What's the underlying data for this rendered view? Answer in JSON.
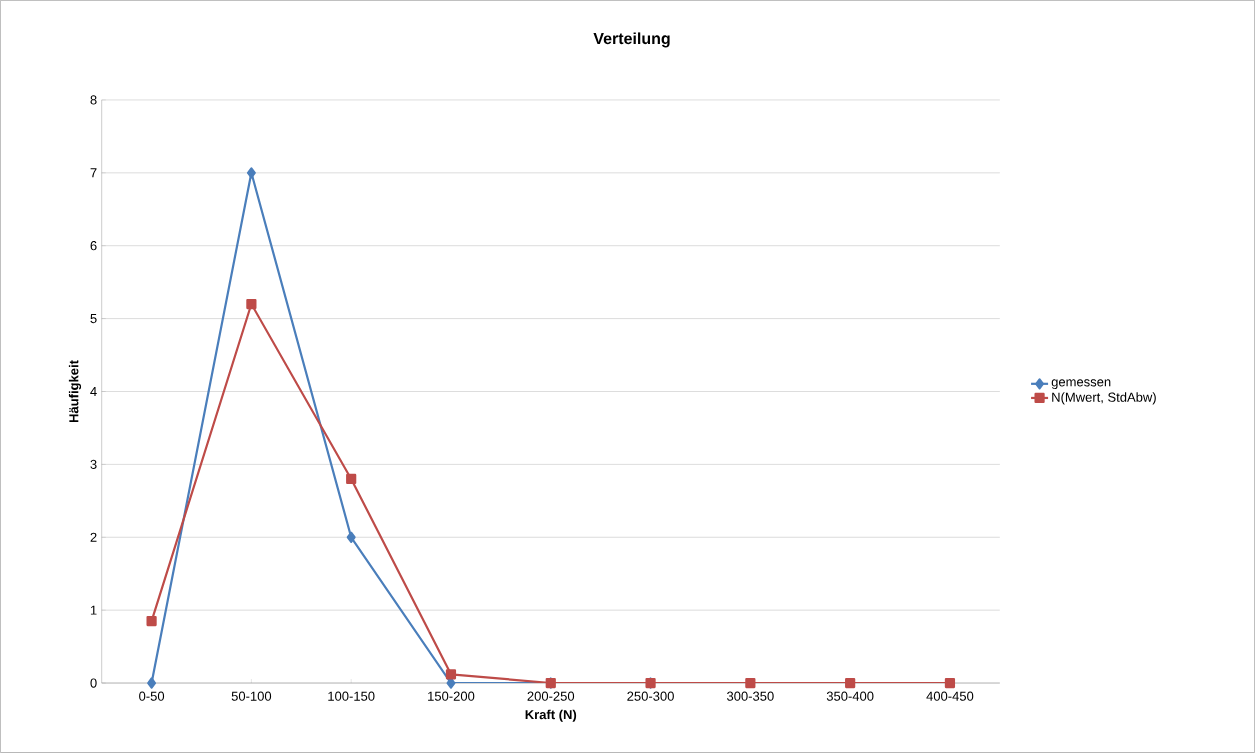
{
  "chart_data": {
    "type": "line",
    "title": "Verteilung",
    "xlabel": "Kraft (N)",
    "ylabel": "Häufigkeit",
    "categories": [
      "0-50",
      "50-100",
      "100-150",
      "150-200",
      "200-250",
      "250-300",
      "300-350",
      "350-400",
      "400-450"
    ],
    "series": [
      {
        "name": "gemessen",
        "color": "#4a7ebb",
        "marker": "diamond",
        "values": [
          0,
          7,
          2,
          0,
          0,
          0,
          null,
          null,
          null
        ]
      },
      {
        "name": "N(Mwert, StdAbw)",
        "color": "#be4b48",
        "marker": "square",
        "values": [
          0.85,
          5.2,
          2.8,
          0.12,
          0,
          0,
          0,
          0,
          0
        ]
      }
    ],
    "ylim": [
      0,
      8
    ],
    "yticks": [
      0,
      1,
      2,
      3,
      4,
      5,
      6,
      7,
      8
    ],
    "grid": "y",
    "legend": "right",
    "line_style": "solid"
  }
}
